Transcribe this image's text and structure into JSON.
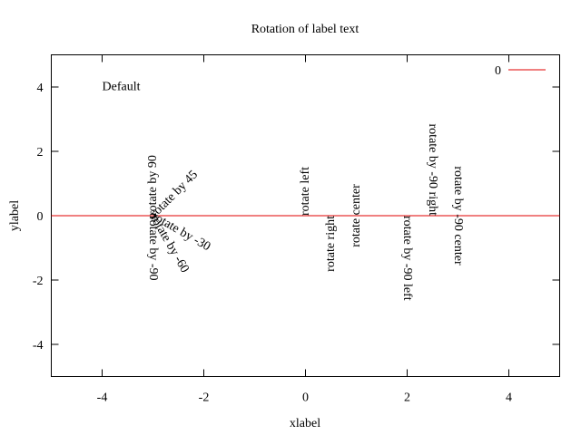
{
  "chart_data": {
    "type": "line",
    "title": "Rotation of label text",
    "xlabel": "xlabel",
    "ylabel": "ylabel",
    "xlim": [
      -5,
      5
    ],
    "ylim": [
      -5,
      5
    ],
    "xticks": [
      -4,
      -2,
      0,
      2,
      4
    ],
    "yticks": [
      -4,
      -2,
      0,
      2,
      4
    ],
    "xtick_labels": [
      "-4",
      "-2",
      "0",
      "2",
      "4"
    ],
    "ytick_labels": [
      "-4",
      "-2",
      "0",
      "2",
      "4"
    ],
    "grid": false,
    "legend_position": "top-right",
    "series": [
      {
        "name": "0",
        "color": "#e00000",
        "x": [
          -5,
          5
        ],
        "y": [
          0,
          0
        ]
      }
    ],
    "annotations": [
      {
        "text": "Default",
        "x": -4,
        "y": 4,
        "rotate": 0,
        "align": "start"
      },
      {
        "text": "rotate by 90",
        "x": -3,
        "y": 0,
        "rotate": 90,
        "align": "start"
      },
      {
        "text": "rotate by 45",
        "x": -3,
        "y": 0,
        "rotate": 45,
        "align": "start"
      },
      {
        "text": "rotate by -30",
        "x": -3,
        "y": 0,
        "rotate": -30,
        "align": "start"
      },
      {
        "text": "rotate by -60",
        "x": -3,
        "y": 0,
        "rotate": -60,
        "align": "start"
      },
      {
        "text": "rotate by -90",
        "x": -3,
        "y": 0,
        "rotate": -90,
        "align": "start"
      },
      {
        "text": "rotate left",
        "x": 0,
        "y": 0,
        "rotate": 90,
        "align": "start"
      },
      {
        "text": "rotate right",
        "x": 0.5,
        "y": 0,
        "rotate": 90,
        "align": "end"
      },
      {
        "text": "rotate center",
        "x": 1,
        "y": 0,
        "rotate": 90,
        "align": "middle"
      },
      {
        "text": "rotate by -90 left",
        "x": 2,
        "y": 0,
        "rotate": -90,
        "align": "start"
      },
      {
        "text": "rotate by -90 right",
        "x": 2.5,
        "y": 0,
        "rotate": -90,
        "align": "end"
      },
      {
        "text": "rotate by -90 center",
        "x": 3,
        "y": 0,
        "rotate": -90,
        "align": "middle"
      }
    ]
  }
}
